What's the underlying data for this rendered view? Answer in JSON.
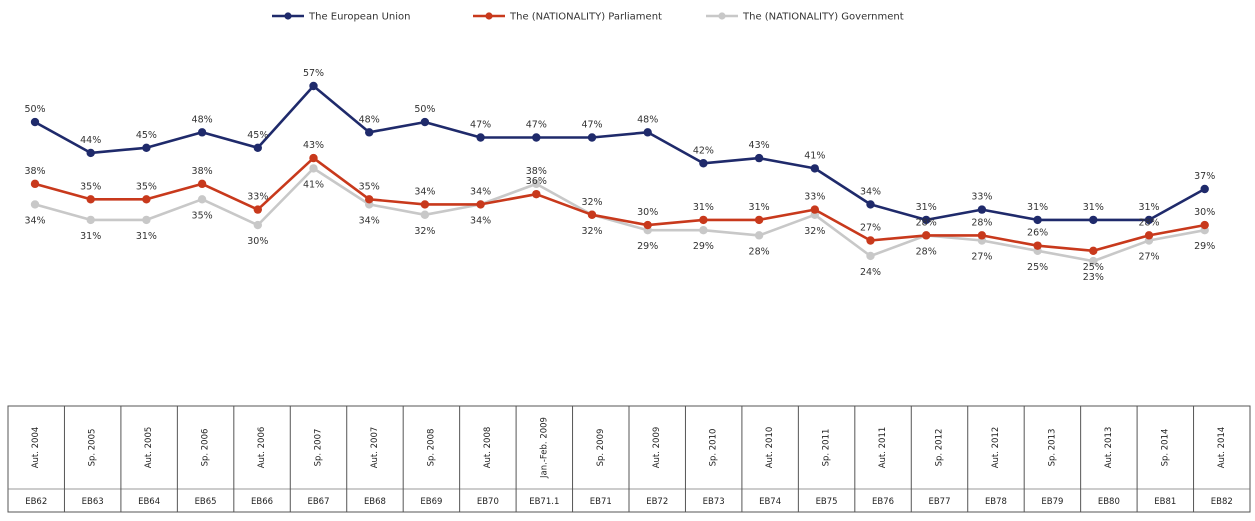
{
  "chart_data": {
    "type": "line",
    "title": "",
    "xlabel": "",
    "ylabel": "",
    "ylim": [
      20,
      60
    ],
    "grid": false,
    "legend_position": "top-center",
    "categories": [
      {
        "date": "Aut. 2004",
        "code": "EB62"
      },
      {
        "date": "Sp. 2005",
        "code": "EB63"
      },
      {
        "date": "Aut. 2005",
        "code": "EB64"
      },
      {
        "date": "Sp. 2006",
        "code": "EB65"
      },
      {
        "date": "Aut. 2006",
        "code": "EB66"
      },
      {
        "date": "Sp. 2007",
        "code": "EB67"
      },
      {
        "date": "Aut. 2007",
        "code": "EB68"
      },
      {
        "date": "Sp. 2008",
        "code": "EB69"
      },
      {
        "date": "Aut. 2008",
        "code": "EB70"
      },
      {
        "date": "Jan.-Feb. 2009",
        "code": "EB71.1"
      },
      {
        "date": "Sp. 2009",
        "code": "EB71"
      },
      {
        "date": "Aut. 2009",
        "code": "EB72"
      },
      {
        "date": "Sp. 2010",
        "code": "EB73"
      },
      {
        "date": "Aut. 2010",
        "code": "EB74"
      },
      {
        "date": "Sp. 2011",
        "code": "EB75"
      },
      {
        "date": "Aut. 2011",
        "code": "EB76"
      },
      {
        "date": "Sp. 2012",
        "code": "EB77"
      },
      {
        "date": "Aut. 2012",
        "code": "EB78"
      },
      {
        "date": "Sp. 2013",
        "code": "EB79"
      },
      {
        "date": "Aut. 2013",
        "code": "EB80"
      },
      {
        "date": "Sp. 2014",
        "code": "EB81"
      },
      {
        "date": "Aut. 2014",
        "code": "EB82"
      }
    ],
    "series": [
      {
        "name": "The European Union",
        "color": "#1f2a6b",
        "values": [
          50,
          44,
          45,
          48,
          45,
          57,
          48,
          50,
          47,
          47,
          47,
          48,
          42,
          43,
          41,
          34,
          31,
          33,
          31,
          31,
          31,
          37
        ],
        "labels": [
          "50%",
          "44%",
          "45%",
          "48%",
          "45%",
          "57%",
          "48%",
          "50%",
          "47%",
          "47%",
          "47%",
          "48%",
          "42%",
          "43%",
          "41%",
          "34%",
          "31%",
          "33%",
          "31%",
          "31%",
          "31%",
          "37%"
        ]
      },
      {
        "name": "The (NATIONALITY) Parliament",
        "color": "#c8391c",
        "values": [
          38,
          35,
          35,
          38,
          33,
          43,
          35,
          34,
          34,
          36,
          32,
          30,
          31,
          31,
          33,
          27,
          28,
          28,
          26,
          25,
          28,
          30
        ],
        "labels": [
          "38%",
          "35%",
          "35%",
          "38%",
          "33%",
          "43%",
          "35%",
          "34%",
          "34%",
          "36%",
          "32%",
          "30%",
          "31%",
          "31%",
          "33%",
          "27%",
          "28%",
          "28%",
          "26%",
          "25%",
          "28%",
          "30%"
        ]
      },
      {
        "name": "The (NATIONALITY) Government",
        "color": "#c8c8c8",
        "values": [
          34,
          31,
          31,
          35,
          30,
          41,
          34,
          32,
          34,
          38,
          32,
          29,
          29,
          28,
          32,
          24,
          28,
          27,
          25,
          23,
          27,
          29
        ],
        "labels": [
          "34%",
          "31%",
          "31%",
          "35%",
          "30%",
          "41%",
          "34%",
          "32%",
          "34%",
          "38%",
          "32%",
          "29%",
          "29%",
          "28%",
          "32%",
          "24%",
          "28%",
          "27%",
          "25%",
          "23%",
          "27%",
          "29%"
        ]
      }
    ]
  }
}
